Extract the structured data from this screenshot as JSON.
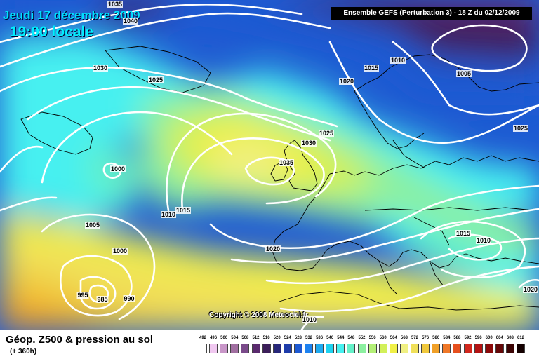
{
  "header": {
    "date": "Jeudi 17 décembre 2009",
    "time": "19:00 locale",
    "model_run": "Ensemble GEFS (Perturbation 3) - 18 Z du 02/12/2009"
  },
  "map": {
    "copyright": "Copyright © 2008 Meteociel.fr",
    "isobar_labels": [
      "1035",
      "1040",
      "1030",
      "1025",
      "1015",
      "1010",
      "1005",
      "1020",
      "1025",
      "1030",
      "1035",
      "1025",
      "1000",
      "1010",
      "1015",
      "1005",
      "1000",
      "1020",
      "1015",
      "1010",
      "995",
      "985",
      "990",
      "1010",
      "1020"
    ]
  },
  "footer": {
    "title": "Géop. Z500 & pression au sol",
    "lead_time": "(+ 360h)",
    "scale": {
      "values": [
        "492",
        "496",
        "500",
        "504",
        "508",
        "512",
        "516",
        "520",
        "524",
        "528",
        "532",
        "536",
        "540",
        "544",
        "548",
        "552",
        "556",
        "560",
        "564",
        "568",
        "572",
        "576",
        "580",
        "584",
        "588",
        "592",
        "596",
        "600",
        "604",
        "608",
        "612"
      ],
      "colors": [
        "#ffffff",
        "#f0c8f0",
        "#c896c8",
        "#a06ea0",
        "#7a4a8a",
        "#5a2a6e",
        "#3c1e5a",
        "#28287a",
        "#1e3caa",
        "#1e5ad2",
        "#1e82f0",
        "#1eaaf0",
        "#1ed2f0",
        "#46f0f0",
        "#64f0c8",
        "#8cf0a0",
        "#b4f078",
        "#d2f05a",
        "#f0f046",
        "#f0f082",
        "#f0e05a",
        "#f0c83c",
        "#f0a028",
        "#f07828",
        "#e6501e",
        "#d2281e",
        "#b41414",
        "#8c0a0a",
        "#640808",
        "#3c0404",
        "#140000"
      ]
    }
  }
}
